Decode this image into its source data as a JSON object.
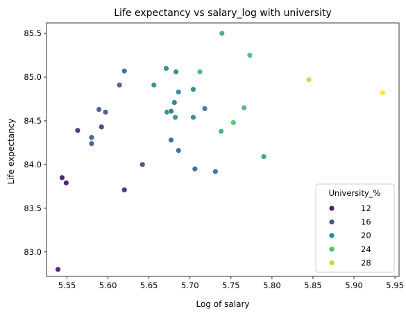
{
  "chart_data": {
    "type": "scatter",
    "title": "Life expectancy vs salary_log with university",
    "xlabel": "Log of salary",
    "ylabel": "Life expectancy",
    "xlim": [
      5.525,
      5.955
    ],
    "ylim": [
      82.72,
      85.62
    ],
    "xticks": [
      "5.55",
      "5.60",
      "5.65",
      "5.70",
      "5.75",
      "5.80",
      "5.85",
      "5.90",
      "5.95"
    ],
    "xtick_values": [
      5.55,
      5.6,
      5.65,
      5.7,
      5.75,
      5.8,
      5.85,
      5.9,
      5.95
    ],
    "yticks": [
      "83.0",
      "83.5",
      "84.0",
      "84.5",
      "85.0",
      "85.5"
    ],
    "ytick_values": [
      83.0,
      83.5,
      84.0,
      84.5,
      85.0,
      85.5
    ],
    "grid": false,
    "color_scale": "viridis",
    "color_range": [
      10,
      30
    ],
    "legend": {
      "title": "University_%",
      "placement": "lower-right",
      "entries": [
        {
          "label": "12",
          "value": 12
        },
        {
          "label": "16",
          "value": 16
        },
        {
          "label": "20",
          "value": 20
        },
        {
          "label": "24",
          "value": 24
        },
        {
          "label": "28",
          "value": 28
        }
      ]
    },
    "points": [
      {
        "x": 5.539,
        "y": 82.8,
        "u": 11
      },
      {
        "x": 5.544,
        "y": 83.85,
        "u": 11
      },
      {
        "x": 5.549,
        "y": 83.79,
        "u": 11
      },
      {
        "x": 5.563,
        "y": 84.39,
        "u": 12
      },
      {
        "x": 5.58,
        "y": 84.31,
        "u": 15
      },
      {
        "x": 5.58,
        "y": 84.24,
        "u": 15
      },
      {
        "x": 5.589,
        "y": 84.63,
        "u": 15
      },
      {
        "x": 5.592,
        "y": 84.43,
        "u": 13
      },
      {
        "x": 5.597,
        "y": 84.6,
        "u": 15
      },
      {
        "x": 5.614,
        "y": 84.91,
        "u": 15
      },
      {
        "x": 5.62,
        "y": 85.07,
        "u": 16
      },
      {
        "x": 5.62,
        "y": 83.71,
        "u": 12
      },
      {
        "x": 5.642,
        "y": 84.0,
        "u": 14
      },
      {
        "x": 5.656,
        "y": 84.91,
        "u": 19
      },
      {
        "x": 5.671,
        "y": 85.1,
        "u": 19
      },
      {
        "x": 5.672,
        "y": 84.6,
        "u": 19
      },
      {
        "x": 5.677,
        "y": 84.61,
        "u": 17
      },
      {
        "x": 5.677,
        "y": 84.28,
        "u": 16
      },
      {
        "x": 5.681,
        "y": 84.71,
        "u": 18
      },
      {
        "x": 5.682,
        "y": 84.54,
        "u": 20
      },
      {
        "x": 5.683,
        "y": 85.06,
        "u": 19
      },
      {
        "x": 5.686,
        "y": 84.83,
        "u": 19
      },
      {
        "x": 5.686,
        "y": 84.16,
        "u": 16
      },
      {
        "x": 5.704,
        "y": 84.86,
        "u": 19
      },
      {
        "x": 5.704,
        "y": 84.54,
        "u": 19
      },
      {
        "x": 5.706,
        "y": 83.95,
        "u": 16
      },
      {
        "x": 5.712,
        "y": 85.06,
        "u": 23
      },
      {
        "x": 5.718,
        "y": 84.64,
        "u": 18
      },
      {
        "x": 5.731,
        "y": 83.92,
        "u": 17
      },
      {
        "x": 5.738,
        "y": 84.38,
        "u": 22
      },
      {
        "x": 5.739,
        "y": 85.5,
        "u": 22
      },
      {
        "x": 5.753,
        "y": 84.48,
        "u": 24
      },
      {
        "x": 5.766,
        "y": 84.65,
        "u": 23
      },
      {
        "x": 5.773,
        "y": 85.25,
        "u": 23
      },
      {
        "x": 5.79,
        "y": 84.09,
        "u": 21
      },
      {
        "x": 5.845,
        "y": 84.97,
        "u": 28
      },
      {
        "x": 5.935,
        "y": 84.82,
        "u": 30
      }
    ]
  }
}
